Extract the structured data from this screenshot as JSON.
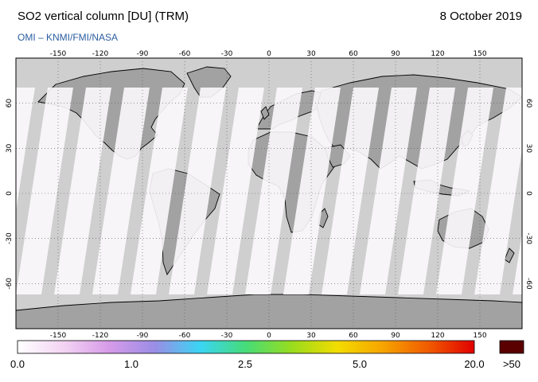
{
  "header": {
    "title": "SO2 vertical column [DU] (TRM)",
    "date": "8 October 2019",
    "credit": "OMI  –  KNMI/FMI/NASA"
  },
  "map": {
    "projection": "equirectangular",
    "lon_range": [
      -180,
      180
    ],
    "lat_range": [
      -90,
      90
    ],
    "lon_ticks": [
      "-150",
      "-120",
      "-90",
      "-60",
      "-30",
      "0",
      "30",
      "60",
      "90",
      "120",
      "150"
    ],
    "lat_ticks": [
      "60",
      "30",
      "0",
      "-30",
      "-60"
    ],
    "grid": "dotted",
    "colors": {
      "no_data": "#cfcfcf",
      "land_no_data": "#a2a2a2",
      "swath": "#fbf8fb",
      "coast": "#000000"
    }
  },
  "colorbar": {
    "labels": [
      "0.0",
      "1.0",
      "2.5",
      "5.0",
      "20.0"
    ],
    "overflow_label": ">50",
    "overflow_color": "#5a0000",
    "gradient": [
      "#ffffff",
      "#f3d4f3",
      "#d79be8",
      "#9b8de6",
      "#3ad5f4",
      "#46dc78",
      "#98dc1e",
      "#f3dc00",
      "#f6a400",
      "#f05a00",
      "#e10000"
    ]
  }
}
